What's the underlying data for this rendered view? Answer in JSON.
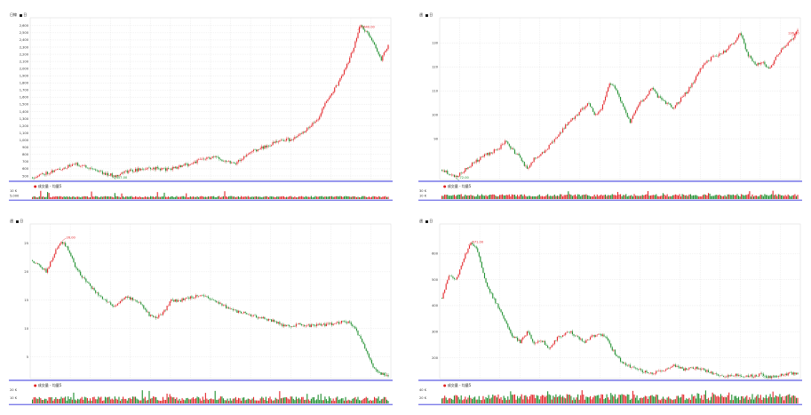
{
  "chart_data": [
    {
      "type": "candlestick",
      "unit_label": "日線",
      "toggle_label": "日",
      "volume_legend": "成交量 - 均量5",
      "price_ticks": [
        "500",
        "600",
        "700",
        "800",
        "900",
        "1,000",
        "1,100",
        "1,200",
        "1,300",
        "1,400",
        "1,500",
        "1,600",
        "1,700",
        "1,800",
        "1,900",
        "2,000",
        "2,100",
        "2,200",
        "2,300",
        "2,400",
        "2,500",
        "2,600"
      ],
      "ylim": [
        450,
        2660
      ],
      "volume_ticks": [
        "10 K",
        "5,000"
      ],
      "volume_max": 11000,
      "high_label": "2640.00",
      "low_label": "457.00",
      "anchors": [
        [
          0,
          480
        ],
        [
          0.04,
          545
        ],
        [
          0.08,
          600
        ],
        [
          0.12,
          665
        ],
        [
          0.16,
          620
        ],
        [
          0.2,
          540
        ],
        [
          0.23,
          500
        ],
        [
          0.26,
          560
        ],
        [
          0.3,
          590
        ],
        [
          0.34,
          610
        ],
        [
          0.38,
          590
        ],
        [
          0.42,
          640
        ],
        [
          0.45,
          680
        ],
        [
          0.48,
          740
        ],
        [
          0.51,
          760
        ],
        [
          0.54,
          720
        ],
        [
          0.57,
          680
        ],
        [
          0.6,
          780
        ],
        [
          0.62,
          850
        ],
        [
          0.65,
          900
        ],
        [
          0.68,
          960
        ],
        [
          0.71,
          1010
        ],
        [
          0.73,
          1000
        ],
        [
          0.76,
          1100
        ],
        [
          0.78,
          1200
        ],
        [
          0.8,
          1280
        ],
        [
          0.82,
          1480
        ],
        [
          0.84,
          1650
        ],
        [
          0.86,
          1800
        ],
        [
          0.88,
          2000
        ],
        [
          0.9,
          2250
        ],
        [
          0.92,
          2600
        ],
        [
          0.94,
          2500
        ],
        [
          0.96,
          2350
        ],
        [
          0.98,
          2120
        ],
        [
          1,
          2330
        ]
      ],
      "high_pos": 0.915,
      "low_pos": 0.225,
      "seed": 11,
      "vol_base": 2000,
      "vol_var": 1800
    },
    {
      "type": "candlestick",
      "unit_label": "週",
      "toggle_label": "日",
      "volume_legend": "成交量 - 均量5",
      "price_ticks": [
        "90",
        "100",
        "110",
        "120",
        "130"
      ],
      "ylim": [
        73,
        139
      ],
      "volume_ticks": [
        "30 K",
        "10 K"
      ],
      "volume_max": 32000,
      "high_label": "136.00",
      "low_label": "72.00",
      "anchors": [
        [
          0,
          77
        ],
        [
          0.04,
          74
        ],
        [
          0.08,
          79
        ],
        [
          0.12,
          83
        ],
        [
          0.16,
          86
        ],
        [
          0.18,
          89
        ],
        [
          0.2,
          85
        ],
        [
          0.22,
          82
        ],
        [
          0.24,
          77
        ],
        [
          0.26,
          82
        ],
        [
          0.29,
          85
        ],
        [
          0.32,
          90
        ],
        [
          0.35,
          96
        ],
        [
          0.38,
          100
        ],
        [
          0.41,
          105
        ],
        [
          0.43,
          100
        ],
        [
          0.45,
          103
        ],
        [
          0.47,
          113
        ],
        [
          0.49,
          111
        ],
        [
          0.51,
          103
        ],
        [
          0.53,
          97
        ],
        [
          0.55,
          104
        ],
        [
          0.57,
          107
        ],
        [
          0.59,
          111
        ],
        [
          0.61,
          107
        ],
        [
          0.63,
          105
        ],
        [
          0.65,
          103
        ],
        [
          0.68,
          108
        ],
        [
          0.7,
          112
        ],
        [
          0.73,
          120
        ],
        [
          0.76,
          124
        ],
        [
          0.79,
          126
        ],
        [
          0.82,
          130
        ],
        [
          0.84,
          134
        ],
        [
          0.86,
          125
        ],
        [
          0.88,
          121
        ],
        [
          0.9,
          122
        ],
        [
          0.92,
          119
        ],
        [
          0.94,
          124
        ],
        [
          0.96,
          128
        ],
        [
          0.98,
          131
        ],
        [
          1,
          135
        ]
      ],
      "high_pos": 0.985,
      "low_pos": 0.04,
      "seed": 23,
      "vol_base": 9000,
      "vol_var": 9000
    },
    {
      "type": "candlestick",
      "unit_label": "週",
      "toggle_label": "日",
      "volume_legend": "成交量 - 均量5",
      "price_ticks": [
        "5",
        "10",
        "15",
        "20",
        "25"
      ],
      "ylim": [
        1.2,
        27.8
      ],
      "volume_ticks": [
        "20 K",
        "10 K"
      ],
      "volume_max": 22000,
      "high_label": "26.00",
      "low_label": "1.00",
      "anchors": [
        [
          0,
          22
        ],
        [
          0.02,
          21
        ],
        [
          0.04,
          20
        ],
        [
          0.06,
          23
        ],
        [
          0.08,
          25.5
        ],
        [
          0.1,
          24
        ],
        [
          0.12,
          21
        ],
        [
          0.14,
          19
        ],
        [
          0.17,
          17
        ],
        [
          0.2,
          15
        ],
        [
          0.23,
          14
        ],
        [
          0.26,
          15.5
        ],
        [
          0.29,
          15
        ],
        [
          0.31,
          14
        ],
        [
          0.33,
          12.3
        ],
        [
          0.35,
          12
        ],
        [
          0.37,
          13
        ],
        [
          0.39,
          15
        ],
        [
          0.41,
          14.8
        ],
        [
          0.44,
          15.5
        ],
        [
          0.47,
          15.8
        ],
        [
          0.5,
          15.3
        ],
        [
          0.53,
          14.3
        ],
        [
          0.56,
          13.2
        ],
        [
          0.59,
          12.8
        ],
        [
          0.62,
          12.2
        ],
        [
          0.65,
          11.8
        ],
        [
          0.68,
          11.3
        ],
        [
          0.7,
          10.6
        ],
        [
          0.72,
          10.5
        ],
        [
          0.75,
          10.7
        ],
        [
          0.78,
          10.5
        ],
        [
          0.81,
          10.6
        ],
        [
          0.84,
          10.8
        ],
        [
          0.86,
          11.1
        ],
        [
          0.88,
          11.3
        ],
        [
          0.9,
          10.6
        ],
        [
          0.92,
          8.5
        ],
        [
          0.94,
          6
        ],
        [
          0.96,
          3
        ],
        [
          0.98,
          2
        ],
        [
          1,
          1.8
        ]
      ],
      "high_pos": 0.085,
      "low_pos": 0.965,
      "seed": 37,
      "vol_base": 4000,
      "vol_var": 7000
    },
    {
      "type": "candlestick",
      "unit_label": "週",
      "toggle_label": "日",
      "volume_legend": "成交量 - 均量5",
      "price_ticks": [
        "200",
        "300",
        "400",
        "500",
        "600"
      ],
      "ylim": [
        120,
        700
      ],
      "volume_ticks": [
        "40 K",
        "20 K"
      ],
      "volume_max": 45000,
      "high_label": "671.00",
      "low_label": "118.00",
      "anchors": [
        [
          0,
          430
        ],
        [
          0.02,
          520
        ],
        [
          0.04,
          500
        ],
        [
          0.06,
          580
        ],
        [
          0.08,
          640
        ],
        [
          0.1,
          610
        ],
        [
          0.12,
          500
        ],
        [
          0.14,
          440
        ],
        [
          0.16,
          390
        ],
        [
          0.18,
          330
        ],
        [
          0.2,
          280
        ],
        [
          0.22,
          260
        ],
        [
          0.24,
          300
        ],
        [
          0.26,
          250
        ],
        [
          0.28,
          270
        ],
        [
          0.3,
          230
        ],
        [
          0.32,
          270
        ],
        [
          0.34,
          290
        ],
        [
          0.36,
          300
        ],
        [
          0.38,
          280
        ],
        [
          0.4,
          260
        ],
        [
          0.42,
          280
        ],
        [
          0.44,
          290
        ],
        [
          0.46,
          280
        ],
        [
          0.48,
          230
        ],
        [
          0.5,
          190
        ],
        [
          0.52,
          170
        ],
        [
          0.54,
          160
        ],
        [
          0.56,
          150
        ],
        [
          0.58,
          140
        ],
        [
          0.6,
          145
        ],
        [
          0.62,
          150
        ],
        [
          0.64,
          165
        ],
        [
          0.66,
          170
        ],
        [
          0.68,
          155
        ],
        [
          0.7,
          165
        ],
        [
          0.72,
          160
        ],
        [
          0.74,
          150
        ],
        [
          0.76,
          140
        ],
        [
          0.78,
          132
        ],
        [
          0.8,
          128
        ],
        [
          0.82,
          135
        ],
        [
          0.84,
          130
        ],
        [
          0.86,
          128
        ],
        [
          0.88,
          132
        ],
        [
          0.9,
          135
        ],
        [
          0.92,
          125
        ],
        [
          0.94,
          130
        ],
        [
          0.96,
          135
        ],
        [
          0.98,
          140
        ],
        [
          1,
          138
        ]
      ],
      "high_pos": 0.075,
      "low_pos": 0.9,
      "seed": 53,
      "vol_base": 10000,
      "vol_var": 20000
    }
  ]
}
